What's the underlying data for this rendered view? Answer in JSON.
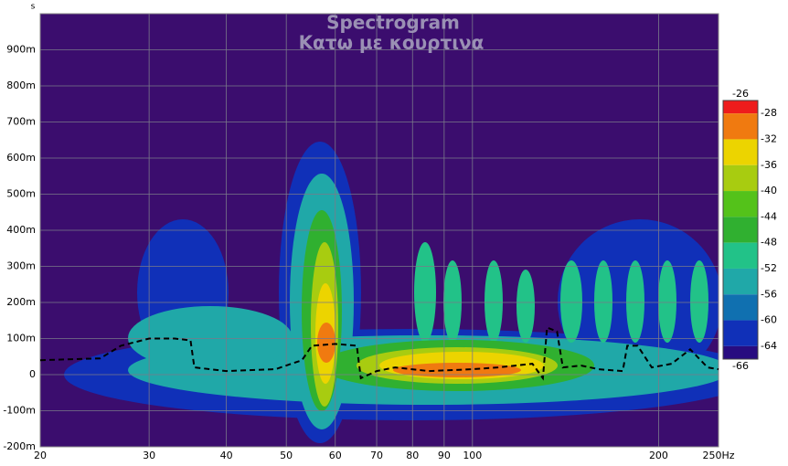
{
  "chart_data": {
    "type": "spectrogram",
    "title": "Spectrogram",
    "subtitle": "Κατω με κουρτινα",
    "y_label": "s",
    "x_log": true,
    "grid": true,
    "background": "#3b0d6e",
    "xlim": [
      20,
      250
    ],
    "ylim": [
      -0.2,
      1.0
    ],
    "xticks": [
      20,
      30,
      40,
      50,
      60,
      70,
      80,
      90,
      100,
      200,
      {
        "value": 250,
        "label": "250Hz"
      }
    ],
    "yticks": [
      {
        "value": 0.9,
        "label": "900m"
      },
      {
        "value": 0.8,
        "label": "800m"
      },
      {
        "value": 0.7,
        "label": "700m"
      },
      {
        "value": 0.6,
        "label": "600m"
      },
      {
        "value": 0.5,
        "label": "500m"
      },
      {
        "value": 0.4,
        "label": "400m"
      },
      {
        "value": 0.3,
        "label": "300m"
      },
      {
        "value": 0.2,
        "label": "200m"
      },
      {
        "value": 0.1,
        "label": "100m"
      },
      0,
      {
        "value": -0.1,
        "label": "-100m"
      },
      {
        "value": -0.2,
        "label": "-200m"
      }
    ],
    "x": [
      20,
      25,
      27,
      30,
      33,
      35,
      35.5,
      40,
      48,
      53,
      55,
      60,
      65,
      66,
      70,
      75,
      85,
      100,
      110,
      125,
      130,
      132,
      137,
      140,
      150,
      160,
      175,
      178,
      185,
      195,
      210,
      225,
      240,
      250
    ],
    "values": [
      0.04,
      0.045,
      0.08,
      0.1,
      0.1,
      0.095,
      0.02,
      0.01,
      0.015,
      0.04,
      0.08,
      0.085,
      0.08,
      -0.01,
      0.01,
      0.02,
      0.01,
      0.015,
      0.02,
      0.03,
      -0.01,
      0.13,
      0.12,
      0.02,
      0.025,
      0.015,
      0.01,
      0.08,
      0.08,
      0.02,
      0.03,
      0.07,
      0.02,
      0.015
    ],
    "line_color": "#000000",
    "line_style": "dashed",
    "colorbar": {
      "levels": [
        -26,
        -28,
        -32,
        -36,
        -40,
        -44,
        -48,
        -52,
        -56,
        -60,
        -64,
        -66
      ],
      "colors": [
        "#ee1c1c",
        "#f07a10",
        "#ecd400",
        "#a8cc10",
        "#54c21a",
        "#30b030",
        "#22c288",
        "#20a8a8",
        "#1070b0",
        "#1030b8",
        "#280c80"
      ]
    }
  }
}
